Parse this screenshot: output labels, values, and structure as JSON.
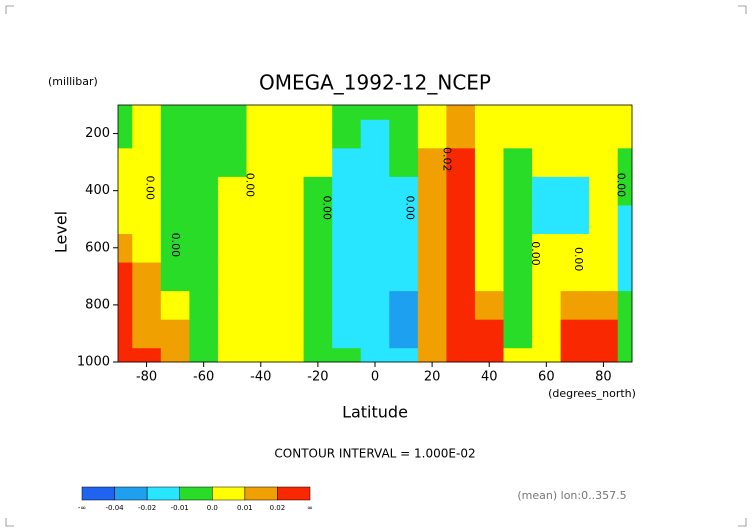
{
  "chart_data": {
    "type": "contour",
    "title": "OMEGA_1992-12_NCEP",
    "y_unit": "(millibar)",
    "ylabel": "Level",
    "xlabel": "Latitude",
    "x_unit": "(degrees_north)",
    "footer": "CONTOUR INTERVAL = 1.000E-02",
    "note": "(mean) lon:0..357.5",
    "x": [
      -90,
      -80,
      -70,
      -60,
      -50,
      -40,
      -30,
      -20,
      -10,
      0,
      10,
      20,
      30,
      40,
      50,
      60,
      70,
      80,
      90
    ],
    "levels": [
      1000,
      900,
      800,
      700,
      600,
      500,
      400,
      300,
      200,
      100
    ],
    "z": [
      [
        0.03,
        0.03,
        0.015,
        -0.005,
        0.005,
        0.005,
        0.005,
        -0.005,
        -0.005,
        -0.015,
        -0.015,
        0.015,
        0.03,
        0.03,
        0.005,
        0.005,
        0.03,
        0.03,
        -0.005
      ],
      [
        0.03,
        0.015,
        0.015,
        -0.005,
        0.005,
        0.005,
        0.005,
        -0.005,
        -0.015,
        -0.015,
        -0.03,
        0.015,
        0.03,
        0.03,
        -0.005,
        0.005,
        0.03,
        0.03,
        -0.005
      ],
      [
        0.03,
        0.015,
        0.005,
        -0.005,
        0.005,
        0.005,
        0.005,
        -0.005,
        -0.015,
        -0.015,
        -0.03,
        0.015,
        0.03,
        0.015,
        -0.005,
        0.005,
        0.015,
        0.015,
        -0.005
      ],
      [
        0.03,
        0.015,
        -0.005,
        -0.005,
        0.005,
        0.005,
        0.005,
        -0.005,
        -0.015,
        -0.015,
        -0.015,
        0.015,
        0.03,
        0.005,
        -0.005,
        0.005,
        0.005,
        0.005,
        -0.015
      ],
      [
        0.015,
        0.005,
        -0.005,
        -0.005,
        0.005,
        0.005,
        0.005,
        -0.005,
        -0.015,
        -0.015,
        -0.015,
        0.015,
        0.03,
        0.005,
        -0.005,
        0.005,
        0.005,
        0.005,
        -0.015
      ],
      [
        0.005,
        0.005,
        -0.005,
        -0.005,
        0.005,
        0.005,
        0.005,
        -0.005,
        -0.015,
        -0.015,
        -0.015,
        0.015,
        0.03,
        0.005,
        -0.005,
        -0.015,
        -0.015,
        0.005,
        -0.015
      ],
      [
        0.005,
        0.005,
        -0.005,
        -0.005,
        0.005,
        0.005,
        0.005,
        -0.005,
        -0.015,
        -0.015,
        -0.015,
        0.015,
        0.03,
        0.005,
        -0.005,
        -0.015,
        -0.015,
        0.005,
        -0.005
      ],
      [
        0.005,
        0.005,
        -0.005,
        -0.005,
        -0.005,
        0.005,
        0.005,
        0.005,
        -0.015,
        -0.015,
        -0.005,
        0.015,
        0.03,
        0.005,
        -0.005,
        0.005,
        0.005,
        0.005,
        -0.005
      ],
      [
        -0.005,
        0.005,
        -0.005,
        -0.005,
        -0.005,
        0.005,
        0.005,
        0.005,
        -0.005,
        -0.015,
        -0.005,
        0.005,
        0.015,
        0.005,
        0.005,
        0.005,
        0.005,
        0.005,
        0.005
      ],
      [
        -0.005,
        0.005,
        -0.005,
        -0.005,
        -0.005,
        0.005,
        0.005,
        0.005,
        -0.005,
        -0.005,
        -0.005,
        0.005,
        0.015,
        0.005,
        0.005,
        0.005,
        0.005,
        0.005,
        0.005
      ]
    ],
    "xlim": [
      -90,
      90
    ],
    "ylim": [
      1000,
      100
    ],
    "xticks": [
      -80,
      -60,
      -40,
      -20,
      0,
      20,
      40,
      60,
      80
    ],
    "yticks": [
      200,
      400,
      600,
      800,
      1000
    ],
    "colorbar": {
      "levels": [
        -0.04,
        -0.02,
        -0.01,
        {
          "value": 0,
          "label": "0.0"
        },
        0.01,
        0.02
      ],
      "colors": [
        "#1e64f0",
        "#1ea0f0",
        "#28e6ff",
        "#28dc28",
        "#ffff00",
        "#f0a000",
        "#fa2800"
      ],
      "low_label": "-∞",
      "high_label": "∞"
    },
    "annotations": [
      {
        "text": "0.00",
        "x": -79,
        "y": 390
      },
      {
        "text": "0.00",
        "x": -70,
        "y": 590
      },
      {
        "text": "0.00",
        "x": -44,
        "y": 380
      },
      {
        "text": "0.00",
        "x": -17,
        "y": 460
      },
      {
        "text": "0.00",
        "x": 12,
        "y": 460
      },
      {
        "text": "0.02",
        "x": 25,
        "y": 290
      },
      {
        "text": "0.00",
        "x": 56,
        "y": 620
      },
      {
        "text": "0.00",
        "x": 71,
        "y": 640
      },
      {
        "text": "0.00",
        "x": 86,
        "y": 380
      }
    ]
  }
}
